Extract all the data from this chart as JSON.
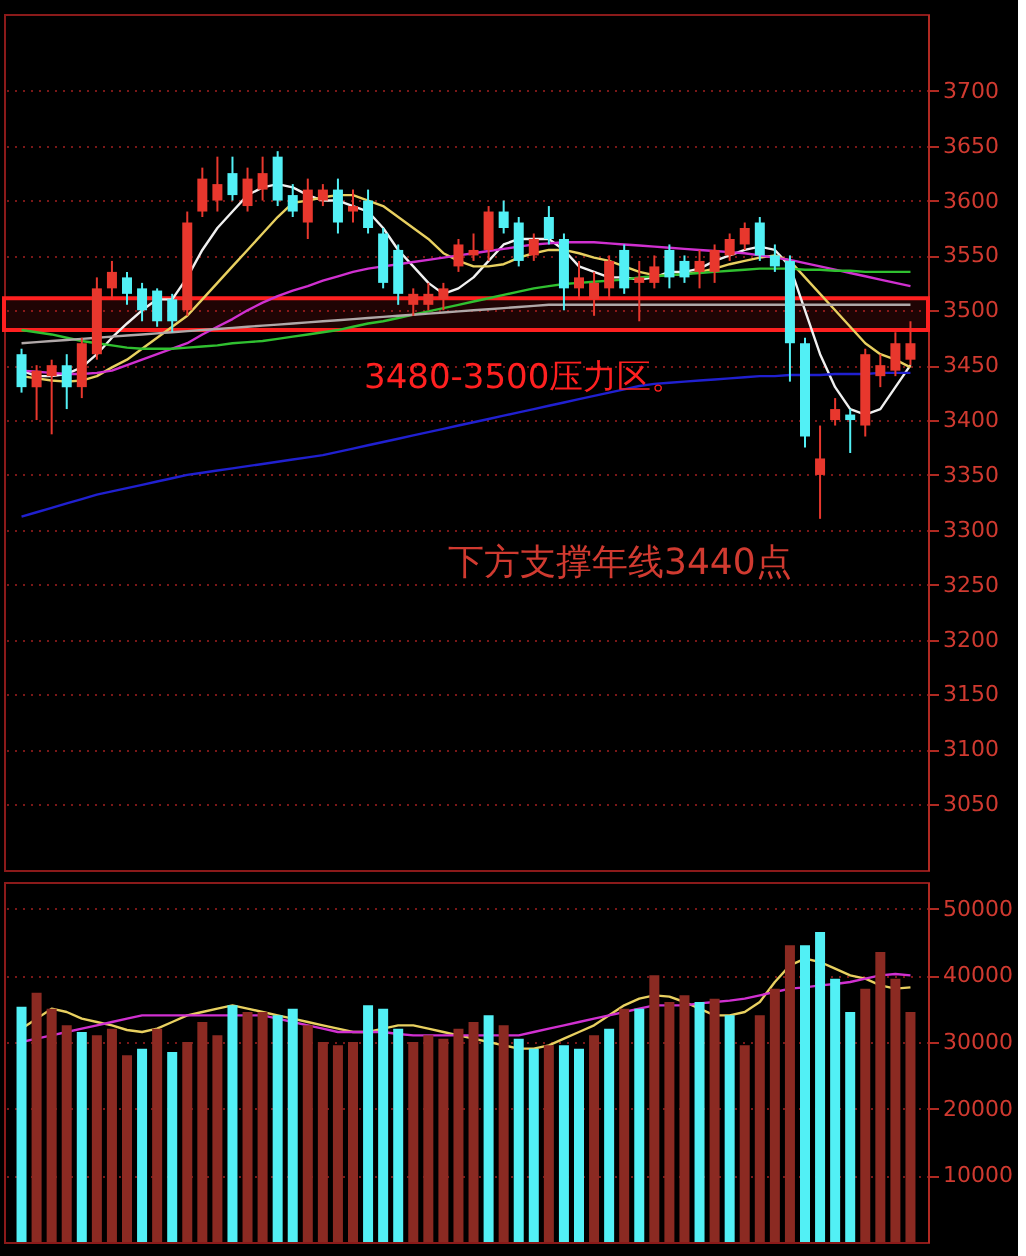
{
  "chart_data": [
    {
      "type": "candlestick",
      "categories": [
        null,
        null,
        null,
        null,
        null,
        null,
        null,
        null,
        null,
        null,
        null,
        null,
        null,
        null,
        null,
        null,
        null,
        null,
        null,
        null,
        null,
        null,
        null,
        null,
        null,
        null,
        null,
        null,
        null,
        null,
        null,
        null,
        null,
        null,
        null,
        null,
        null,
        null,
        null,
        null,
        null,
        null,
        null,
        null,
        null,
        null,
        null,
        null,
        null,
        null,
        null,
        null,
        null,
        null,
        null,
        null,
        null,
        null,
        null,
        null
      ],
      "ohlc": [
        [
          3460,
          3465,
          3425,
          3430
        ],
        [
          3430,
          3450,
          3400,
          3445
        ],
        [
          3440,
          3455,
          3387,
          3450
        ],
        [
          3450,
          3460,
          3410,
          3430
        ],
        [
          3430,
          3475,
          3420,
          3470
        ],
        [
          3460,
          3530,
          3455,
          3520
        ],
        [
          3520,
          3545,
          3510,
          3535
        ],
        [
          3530,
          3535,
          3505,
          3515
        ],
        [
          3520,
          3525,
          3490,
          3500
        ],
        [
          3518,
          3520,
          3485,
          3490
        ],
        [
          3510,
          3515,
          3480,
          3490
        ],
        [
          3500,
          3590,
          3495,
          3580
        ],
        [
          3590,
          3630,
          3585,
          3620
        ],
        [
          3600,
          3640,
          3590,
          3615
        ],
        [
          3625,
          3640,
          3600,
          3605
        ],
        [
          3595,
          3630,
          3590,
          3620
        ],
        [
          3610,
          3640,
          3600,
          3625
        ],
        [
          3640,
          3645,
          3595,
          3600
        ],
        [
          3605,
          3615,
          3585,
          3590
        ],
        [
          3580,
          3620,
          3565,
          3610
        ],
        [
          3600,
          3615,
          3595,
          3610
        ],
        [
          3610,
          3620,
          3570,
          3580
        ],
        [
          3590,
          3610,
          3580,
          3595
        ],
        [
          3600,
          3610,
          3570,
          3575
        ],
        [
          3570,
          3575,
          3520,
          3525
        ],
        [
          3555,
          3560,
          3505,
          3515
        ],
        [
          3505,
          3520,
          3495,
          3515
        ],
        [
          3505,
          3525,
          3500,
          3515
        ],
        [
          3510,
          3525,
          3500,
          3520
        ],
        [
          3540,
          3565,
          3535,
          3560
        ],
        [
          3550,
          3570,
          3545,
          3555
        ],
        [
          3555,
          3595,
          3545,
          3590
        ],
        [
          3590,
          3600,
          3570,
          3575
        ],
        [
          3580,
          3585,
          3540,
          3545
        ],
        [
          3550,
          3570,
          3545,
          3565
        ],
        [
          3585,
          3595,
          3560,
          3565
        ],
        [
          3565,
          3570,
          3500,
          3520
        ],
        [
          3520,
          3545,
          3510,
          3530
        ],
        [
          3510,
          3535,
          3495,
          3525
        ],
        [
          3520,
          3550,
          3510,
          3545
        ],
        [
          3555,
          3560,
          3515,
          3520
        ],
        [
          3525,
          3545,
          3490,
          3530
        ],
        [
          3525,
          3550,
          3520,
          3540
        ],
        [
          3555,
          3560,
          3520,
          3530
        ],
        [
          3545,
          3550,
          3525,
          3530
        ],
        [
          3535,
          3555,
          3520,
          3545
        ],
        [
          3535,
          3560,
          3525,
          3555
        ],
        [
          3550,
          3570,
          3545,
          3565
        ],
        [
          3560,
          3580,
          3555,
          3575
        ],
        [
          3580,
          3585,
          3545,
          3550
        ],
        [
          3550,
          3560,
          3535,
          3540
        ],
        [
          3545,
          3550,
          3435,
          3470
        ],
        [
          3470,
          3475,
          3375,
          3385
        ],
        [
          3350,
          3395,
          3310,
          3365
        ],
        [
          3400,
          3420,
          3395,
          3410
        ],
        [
          3405,
          3410,
          3370,
          3400
        ],
        [
          3395,
          3465,
          3385,
          3460
        ],
        [
          3440,
          3460,
          3430,
          3450
        ],
        [
          3445,
          3480,
          3440,
          3470
        ],
        [
          3455,
          3490,
          3450,
          3470
        ]
      ],
      "colors": [
        "#52f0f5",
        "#e8372d",
        "#e8372d",
        "#52f0f5",
        "#e8372d",
        "#e8372d",
        "#e8372d",
        "#52f0f5",
        "#52f0f5",
        "#52f0f5",
        "#52f0f5",
        "#e8372d",
        "#e8372d",
        "#e8372d",
        "#52f0f5",
        "#e8372d",
        "#e8372d",
        "#52f0f5",
        "#52f0f5",
        "#e8372d",
        "#e8372d",
        "#52f0f5",
        "#e8372d",
        "#52f0f5",
        "#52f0f5",
        "#52f0f5",
        "#e8372d",
        "#e8372d",
        "#e8372d",
        "#e8372d",
        "#e8372d",
        "#e8372d",
        "#52f0f5",
        "#52f0f5",
        "#e8372d",
        "#52f0f5",
        "#52f0f5",
        "#e8372d",
        "#e8372d",
        "#e8372d",
        "#52f0f5",
        "#e8372d",
        "#e8372d",
        "#52f0f5",
        "#52f0f5",
        "#e8372d",
        "#e8372d",
        "#e8372d",
        "#e8372d",
        "#52f0f5",
        "#52f0f5",
        "#52f0f5",
        "#52f0f5",
        "#e8372d",
        "#e8372d",
        "#52f0f5",
        "#e8372d",
        "#e8372d",
        "#e8372d",
        "#e8372d"
      ],
      "series": [
        {
          "type": "line",
          "color": "#f0f0f0",
          "values": [
            3445,
            3440,
            3440,
            3442,
            3448,
            3460,
            3475,
            3488,
            3500,
            3510,
            3510,
            3530,
            3555,
            3575,
            3590,
            3605,
            3612,
            3615,
            3612,
            3605,
            3600,
            3600,
            3595,
            3590,
            3575,
            3555,
            3540,
            3525,
            3515,
            3520,
            3530,
            3545,
            3560,
            3565,
            3565,
            3565,
            3555,
            3540,
            3535,
            3530,
            3530,
            3528,
            3530,
            3535,
            3535,
            3538,
            3545,
            3550,
            3555,
            3558,
            3555,
            3540,
            3500,
            3460,
            3430,
            3410,
            3405,
            3410,
            3430,
            3450
          ]
        },
        {
          "type": "line",
          "color": "#e8d060",
          "values": [
            3440,
            3438,
            3436,
            3435,
            3436,
            3440,
            3448,
            3455,
            3465,
            3475,
            3485,
            3495,
            3510,
            3525,
            3540,
            3555,
            3570,
            3585,
            3598,
            3600,
            3603,
            3605,
            3605,
            3600,
            3595,
            3585,
            3575,
            3565,
            3552,
            3545,
            3540,
            3540,
            3542,
            3548,
            3552,
            3555,
            3555,
            3552,
            3548,
            3545,
            3540,
            3535,
            3532,
            3532,
            3533,
            3535,
            3538,
            3542,
            3545,
            3548,
            3550,
            3545,
            3530,
            3515,
            3500,
            3485,
            3470,
            3460,
            3455,
            3448
          ]
        },
        {
          "type": "line",
          "color": "#d030d0",
          "values": [
            3445,
            3444,
            3443,
            3442,
            3442,
            3443,
            3445,
            3450,
            3455,
            3460,
            3465,
            3470,
            3478,
            3485,
            3492,
            3500,
            3507,
            3513,
            3518,
            3522,
            3527,
            3531,
            3535,
            3538,
            3540,
            3542,
            3544,
            3546,
            3548,
            3550,
            3552,
            3554,
            3556,
            3558,
            3560,
            3561,
            3562,
            3562,
            3562,
            3561,
            3560,
            3559,
            3558,
            3557,
            3556,
            3555,
            3554,
            3553,
            3552,
            3550,
            3548,
            3546,
            3543,
            3540,
            3537,
            3534,
            3531,
            3528,
            3525,
            3522
          ]
        },
        {
          "type": "line",
          "color": "#30c030",
          "values": [
            3482,
            3480,
            3478,
            3475,
            3472,
            3470,
            3468,
            3466,
            3465,
            3465,
            3465,
            3466,
            3467,
            3468,
            3470,
            3471,
            3472,
            3474,
            3476,
            3478,
            3480,
            3482,
            3485,
            3488,
            3490,
            3493,
            3496,
            3499,
            3502,
            3505,
            3508,
            3511,
            3514,
            3517,
            3520,
            3522,
            3524,
            3525,
            3526,
            3527,
            3528,
            3530,
            3531,
            3532,
            3533,
            3534,
            3535,
            3536,
            3537,
            3538,
            3538,
            3538,
            3537,
            3537,
            3536,
            3536,
            3535,
            3535,
            3535,
            3535
          ]
        },
        {
          "type": "line",
          "color": "#b0a8a8",
          "values": [
            3470,
            3471,
            3472,
            3473,
            3474,
            3475,
            3476,
            3477,
            3478,
            3479,
            3480,
            3481,
            3482,
            3483,
            3484,
            3485,
            3486,
            3487,
            3488,
            3489,
            3490,
            3491,
            3492,
            3493,
            3494,
            3495,
            3496,
            3497,
            3498,
            3499,
            3500,
            3501,
            3502,
            3503,
            3504,
            3505,
            3505,
            3505,
            3505,
            3505,
            3505,
            3505,
            3505,
            3505,
            3505,
            3505,
            3505,
            3505,
            3505,
            3505,
            3505,
            3505,
            3505,
            3505,
            3505,
            3505,
            3505,
            3505,
            3505,
            3505
          ]
        },
        {
          "type": "line",
          "color": "#2020d0",
          "values": [
            3312,
            3316,
            3320,
            3324,
            3328,
            3332,
            3335,
            3338,
            3341,
            3344,
            3347,
            3350,
            3352,
            3354,
            3356,
            3358,
            3360,
            3362,
            3364,
            3366,
            3368,
            3371,
            3374,
            3377,
            3380,
            3383,
            3386,
            3389,
            3392,
            3395,
            3398,
            3401,
            3404,
            3407,
            3410,
            3413,
            3416,
            3419,
            3422,
            3425,
            3428,
            3431,
            3433,
            3434,
            3435,
            3436,
            3437,
            3438,
            3439,
            3440,
            3440,
            3441,
            3441,
            3441,
            3442,
            3442,
            3442,
            3443,
            3443,
            3443
          ]
        }
      ],
      "ylim": [
        2990,
        3770
      ],
      "yticks": [
        3050,
        3100,
        3150,
        3200,
        3250,
        3300,
        3350,
        3400,
        3450,
        3500,
        3550,
        3600,
        3650,
        3700
      ],
      "grid": "y",
      "tick_labels": "y",
      "bands": [
        {
          "axis": "y",
          "from": 3482,
          "to": 3511,
          "label": "3480-3500压力区。",
          "color": "#ff2020"
        }
      ],
      "annotations": [
        "下方支撑年线3440点"
      ]
    },
    {
      "type": "bar",
      "categories": [
        null,
        null,
        null,
        null,
        null,
        null,
        null,
        null,
        null,
        null,
        null,
        null,
        null,
        null,
        null,
        null,
        null,
        null,
        null,
        null,
        null,
        null,
        null,
        null,
        null,
        null,
        null,
        null,
        null,
        null,
        null,
        null,
        null,
        null,
        null,
        null,
        null,
        null,
        null,
        null,
        null,
        null,
        null,
        null,
        null,
        null,
        null,
        null,
        null,
        null,
        null,
        null,
        null,
        null,
        null,
        null,
        null,
        null,
        null,
        null
      ],
      "values": [
        35300,
        37400,
        35000,
        32500,
        31500,
        31000,
        32000,
        28000,
        29000,
        32000,
        28500,
        30000,
        33000,
        31000,
        35500,
        34500,
        34500,
        34000,
        35000,
        32500,
        30000,
        29500,
        30000,
        35500,
        35000,
        32000,
        30000,
        31000,
        30500,
        32000,
        33000,
        34000,
        32500,
        30500,
        29000,
        29500,
        29500,
        29000,
        31000,
        32000,
        35000,
        35000,
        40000,
        36000,
        37000,
        36000,
        36500,
        34000,
        29500,
        34000,
        38000,
        44500,
        44500,
        46500,
        39500,
        34500,
        38000,
        43500,
        39500,
        34500
      ],
      "colors": [
        "#52f0f5",
        "#8b2a22",
        "#8b2a22",
        "#8b2a22",
        "#52f0f5",
        "#8b2a22",
        "#8b2a22",
        "#8b2a22",
        "#52f0f5",
        "#8b2a22",
        "#52f0f5",
        "#8b2a22",
        "#8b2a22",
        "#8b2a22",
        "#52f0f5",
        "#8b2a22",
        "#8b2a22",
        "#52f0f5",
        "#52f0f5",
        "#8b2a22",
        "#8b2a22",
        "#8b2a22",
        "#8b2a22",
        "#52f0f5",
        "#52f0f5",
        "#52f0f5",
        "#8b2a22",
        "#8b2a22",
        "#8b2a22",
        "#8b2a22",
        "#8b2a22",
        "#52f0f5",
        "#8b2a22",
        "#52f0f5",
        "#52f0f5",
        "#8b2a22",
        "#52f0f5",
        "#52f0f5",
        "#8b2a22",
        "#52f0f5",
        "#8b2a22",
        "#52f0f5",
        "#8b2a22",
        "#8b2a22",
        "#8b2a22",
        "#52f0f5",
        "#8b2a22",
        "#52f0f5",
        "#8b2a22",
        "#8b2a22",
        "#8b2a22",
        "#8b2a22",
        "#52f0f5",
        "#52f0f5",
        "#52f0f5",
        "#52f0f5",
        "#8b2a22",
        "#8b2a22",
        "#8b2a22",
        "#8b2a22"
      ],
      "series": [
        {
          "type": "line",
          "color": "#e8d060",
          "values": [
            32000,
            33500,
            35000,
            34500,
            33500,
            33000,
            32500,
            31800,
            31500,
            32000,
            33000,
            34000,
            34500,
            35000,
            35500,
            35000,
            34500,
            34000,
            33500,
            33000,
            32500,
            32000,
            31500,
            31500,
            32000,
            32500,
            32500,
            32000,
            31500,
            31000,
            30500,
            30000,
            29500,
            29000,
            29000,
            29500,
            30500,
            31500,
            32500,
            34000,
            35500,
            36500,
            37000,
            36800,
            36000,
            35000,
            34000,
            34000,
            34500,
            36000,
            39000,
            41500,
            42500,
            42000,
            41000,
            40000,
            39500,
            38500,
            38000,
            38200
          ]
        },
        {
          "type": "line",
          "color": "#d030d0",
          "values": [
            30000,
            30500,
            31000,
            31500,
            32000,
            32500,
            33000,
            33500,
            34000,
            34000,
            34000,
            34000,
            34000,
            34000,
            34000,
            34000,
            34000,
            33500,
            33000,
            32500,
            32000,
            31500,
            31500,
            31500,
            31500,
            31200,
            31000,
            31000,
            31000,
            31000,
            31000,
            31000,
            31000,
            31000,
            31500,
            32000,
            32500,
            33000,
            33500,
            34000,
            34500,
            35000,
            35500,
            35500,
            35500,
            35800,
            36000,
            36200,
            36500,
            37000,
            37500,
            38000,
            38200,
            38500,
            38700,
            39000,
            39500,
            40000,
            40200,
            40000
          ]
        }
      ],
      "ylim": [
        0,
        54000
      ],
      "yticks": [
        10000,
        20000,
        30000,
        40000,
        50000
      ],
      "grid": "y",
      "tick_labels": "y"
    }
  ]
}
